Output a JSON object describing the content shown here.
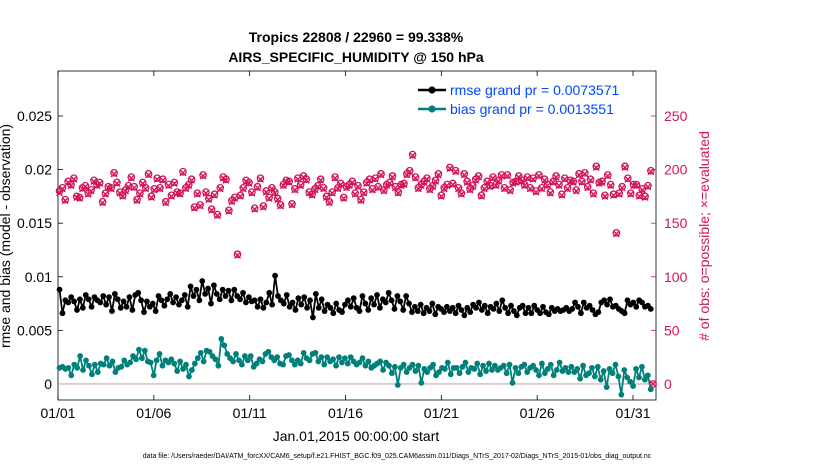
{
  "chart_data": {
    "type": "line",
    "title": "Tropics 22808 / 22960 = 99.338%",
    "subtitle": "AIRS_SPECIFIC_HUMIDITY @ 150 hPa",
    "xlabel": "Jan.01,2015 00:00:00 start",
    "ylabel_left": "rmse and bias (model - observation)",
    "ylabel_right": "# of obs: o=possible; ×=evaluated",
    "footer": "data file: /Users/raeder/DAI/ATM_forcXX/CAM6_setup/f.e21.FHIST_BGC.f09_025.CAM6assim.011/Diags_NTrS_2017-02/Diags_NTrS_2015-01/obs_diag_output.nc",
    "x_ticks": [
      "01/01",
      "01/06",
      "01/11",
      "01/16",
      "01/21",
      "01/26",
      "01/31"
    ],
    "x_tick_days": [
      0,
      5,
      10,
      15,
      20,
      25,
      30
    ],
    "xlim": [
      0,
      31.2
    ],
    "ylim_left": [
      -0.0015,
      0.0292
    ],
    "y_ticks_left": [
      "0",
      "0.005",
      "0.01",
      "0.015",
      "0.02",
      "0.025"
    ],
    "y_tick_values_left": [
      0,
      0.005,
      0.01,
      0.015,
      0.02,
      0.025
    ],
    "ylim_right": [
      -15,
      292
    ],
    "y_ticks_right": [
      "0",
      "50",
      "100",
      "150",
      "200",
      "250"
    ],
    "y_tick_values_right": [
      0,
      50,
      100,
      150,
      200,
      250
    ],
    "legend": [
      {
        "name": "rmse grand pr = 0.0073571",
        "color": "#000000"
      },
      {
        "name": "bias grand pr = 0.0013551",
        "color": "#00807a"
      }
    ],
    "series": [
      {
        "name": "rmse",
        "axis": "left",
        "color": "#000000",
        "values": [
          0.0088,
          0.0066,
          0.0078,
          0.0076,
          0.0081,
          0.0077,
          0.0069,
          0.0079,
          0.0071,
          0.0083,
          0.0079,
          0.0072,
          0.0081,
          0.0078,
          0.0076,
          0.0082,
          0.0074,
          0.0081,
          0.0068,
          0.0084,
          0.0079,
          0.0071,
          0.0077,
          0.0072,
          0.0081,
          0.0069,
          0.0083,
          0.0085,
          0.0078,
          0.0067,
          0.0077,
          0.0072,
          0.0075,
          0.0068,
          0.0082,
          0.0078,
          0.0073,
          0.0079,
          0.0084,
          0.0076,
          0.0081,
          0.0074,
          0.0078,
          0.0083,
          0.0072,
          0.0091,
          0.0082,
          0.0088,
          0.0078,
          0.0096,
          0.0084,
          0.0089,
          0.0075,
          0.0092,
          0.0084,
          0.0079,
          0.0088,
          0.0082,
          0.0087,
          0.0078,
          0.0088,
          0.0082,
          0.0079,
          0.0085,
          0.0076,
          0.0081,
          0.0077,
          0.0078,
          0.0072,
          0.0079,
          0.0071,
          0.0076,
          0.0085,
          0.0074,
          0.0101,
          0.0082,
          0.0078,
          0.0075,
          0.0083,
          0.0072,
          0.0076,
          0.0069,
          0.008,
          0.0074,
          0.0081,
          0.0071,
          0.0078,
          0.0062,
          0.0084,
          0.0071,
          0.0079,
          0.0068,
          0.0074,
          0.0071,
          0.0066,
          0.0075,
          0.0069,
          0.0067,
          0.0074,
          0.0078,
          0.0072,
          0.008,
          0.0071,
          0.0068,
          0.0082,
          0.0075,
          0.0069,
          0.008,
          0.0074,
          0.0083,
          0.0071,
          0.0079,
          0.0076,
          0.0085,
          0.0078,
          0.007,
          0.0082,
          0.0077,
          0.0069,
          0.0082,
          0.0075,
          0.0067,
          0.0072,
          0.0068,
          0.0074,
          0.0066,
          0.0071,
          0.0068,
          0.0075,
          0.0065,
          0.0072,
          0.007,
          0.0067,
          0.0072,
          0.0068,
          0.0071,
          0.0066,
          0.0073,
          0.0069,
          0.0064,
          0.0071,
          0.0067,
          0.0074,
          0.0071,
          0.0076,
          0.0069,
          0.0073,
          0.0066,
          0.0072,
          0.007,
          0.0075,
          0.0068,
          0.0078,
          0.0071,
          0.0066,
          0.0073,
          0.0068,
          0.0064,
          0.0071,
          0.0073,
          0.0066,
          0.0071,
          0.0066,
          0.0073,
          0.0069,
          0.0066,
          0.0072,
          0.0067,
          0.0065,
          0.0071,
          0.0068,
          0.007,
          0.0068,
          0.0069,
          0.0071,
          0.0068,
          0.007,
          0.0076,
          0.0072,
          0.0066,
          0.0076,
          0.0071,
          0.0073,
          0.0069,
          0.0065,
          0.0067,
          0.0076,
          0.0078,
          0.0074,
          0.0079,
          0.0072,
          0.0073,
          0.007,
          0.0068,
          0.0066,
          0.0078,
          0.0074,
          0.0076,
          0.0072,
          0.0078,
          0.0076,
          0.0072,
          0.0073,
          0.007
        ]
      },
      {
        "name": "bias",
        "axis": "left",
        "color": "#00807a",
        "values": [
          0.0015,
          0.0016,
          0.0014,
          0.0015,
          0.0008,
          0.0018,
          0.0015,
          0.0026,
          0.0013,
          0.0022,
          0.0017,
          0.0009,
          0.0018,
          0.0011,
          0.0019,
          0.0018,
          0.0024,
          0.0017,
          0.0021,
          0.0011,
          0.0015,
          0.0016,
          0.0022,
          0.0018,
          0.002,
          0.0026,
          0.0023,
          0.0032,
          0.0024,
          0.0031,
          0.0021,
          0.002,
          0.0008,
          0.0022,
          0.0028,
          0.0017,
          0.0022,
          0.002,
          0.0023,
          0.0019,
          0.0012,
          0.0021,
          0.0014,
          0.0018,
          0.0007,
          0.0013,
          0.0019,
          0.0024,
          0.0029,
          0.0021,
          0.0031,
          0.003,
          0.0026,
          0.0023,
          0.0017,
          0.0042,
          0.0036,
          0.0028,
          0.0024,
          0.0021,
          0.0028,
          0.0022,
          0.0018,
          0.0026,
          0.0022,
          0.0026,
          0.0016,
          0.0019,
          0.0023,
          0.0021,
          0.0028,
          0.003,
          0.0025,
          0.0022,
          0.0025,
          0.0019,
          0.0018,
          0.0026,
          0.0027,
          0.0022,
          0.0018,
          0.0022,
          0.0019,
          0.0029,
          0.0024,
          0.0022,
          0.0028,
          0.0029,
          0.0021,
          0.0025,
          0.0018,
          0.0025,
          0.0021,
          0.0023,
          0.0017,
          0.0025,
          0.002,
          0.0024,
          0.0019,
          0.0025,
          0.0021,
          0.0018,
          0.002,
          0.0024,
          0.0017,
          0.0021,
          0.0015,
          0.0017,
          0.0019,
          0.0021,
          0.0013,
          0.002,
          0.0017,
          0.001,
          0.0016,
          -0.0001,
          0.0015,
          0.0018,
          0.0011,
          0.0015,
          0.0018,
          0.0012,
          0.0017,
          0.0001,
          0.0014,
          0.0011,
          0.0015,
          0.0018,
          0.0008,
          0.0011,
          0.0015,
          0.0014,
          0.002,
          0.0009,
          0.0015,
          0.0015,
          0.001,
          0.0016,
          0.002,
          0.0011,
          0.0015,
          0.0014,
          0.0019,
          0.0009,
          0.0017,
          0.0012,
          0.0019,
          0.0013,
          0.0017,
          0.0013,
          0.0015,
          0.0017,
          0.001,
          0.0018,
          0.0001,
          0.0015,
          0.001,
          0.0016,
          0.0018,
          0.0011,
          0.0015,
          0.0017,
          0.0013,
          0.0008,
          0.0019,
          0.001,
          0.0014,
          0.0018,
          0.0008,
          0.0013,
          0.002,
          0.0012,
          0.0015,
          0.0011,
          0.0016,
          0.0011,
          0.0014,
          0.0005,
          0.0017,
          0.0008,
          0.001,
          0.0015,
          0.0007,
          0.0016,
          0.0004,
          0.0012,
          -0.0003,
          0.0014,
          0.001,
          0.0018,
          0.0007,
          -0.001,
          0.0013,
          0.0006,
          0.0002,
          -0.0002,
          0.0014,
          0.0006,
          0.0016,
          0.0004,
          0.0008,
          -0.0005
        ]
      },
      {
        "name": "# of obs possible",
        "axis": "right",
        "color": "#d4145a",
        "values": [
          180,
          183,
          172,
          189,
          186,
          192,
          175,
          174,
          183,
          185,
          178,
          181,
          190,
          186,
          188,
          170,
          178,
          184,
          183,
          197,
          188,
          179,
          176,
          181,
          185,
          193,
          184,
          172,
          178,
          188,
          183,
          196,
          175,
          182,
          192,
          183,
          191,
          170,
          186,
          176,
          188,
          179,
          178,
          198,
          183,
          186,
          191,
          165,
          178,
          167,
          195,
          179,
          173,
          163,
          177,
          158,
          183,
          193,
          191,
          162,
          171,
          174,
          121,
          176,
          183,
          190,
          188,
          179,
          164,
          184,
          192,
          166,
          180,
          174,
          183,
          179,
          173,
          167,
          186,
          190,
          189,
          168,
          182,
          192,
          186,
          194,
          191,
          179,
          177,
          182,
          185,
          191,
          183,
          175,
          170,
          179,
          193,
          183,
          187,
          174,
          184,
          186,
          189,
          178,
          185,
          172,
          179,
          188,
          191,
          182,
          192,
          184,
          196,
          181,
          186,
          188,
          194,
          184,
          179,
          186,
          187,
          196,
          199,
          214,
          193,
          183,
          186,
          189,
          192,
          182,
          185,
          190,
          196,
          176,
          183,
          186,
          202,
          187,
          199,
          183,
          178,
          196,
          189,
          182,
          185,
          191,
          194,
          176,
          183,
          189,
          185,
          193,
          186,
          190,
          195,
          183,
          195,
          181,
          188,
          189,
          194,
          190,
          186,
          193,
          183,
          192,
          180,
          195,
          183,
          191,
          186,
          179,
          189,
          194,
          186,
          177,
          192,
          183,
          190,
          189,
          181,
          196,
          189,
          197,
          184,
          191,
          178,
          203,
          188,
          189,
          176,
          195,
          186,
          177,
          141,
          178,
          184,
          203,
          192,
          178,
          186,
          186,
          176,
          182,
          175,
          185,
          199
        ]
      },
      {
        "name": "# of obs evaluated",
        "axis": "right",
        "color": "#d4145a",
        "values": [
          178,
          182,
          171,
          188,
          185,
          191,
          174,
          173,
          182,
          184,
          177,
          180,
          189,
          185,
          187,
          169,
          177,
          183,
          182,
          196,
          187,
          178,
          175,
          180,
          184,
          192,
          183,
          171,
          177,
          187,
          182,
          195,
          174,
          181,
          191,
          182,
          190,
          169,
          185,
          175,
          187,
          178,
          177,
          197,
          182,
          185,
          190,
          164,
          177,
          166,
          194,
          178,
          172,
          162,
          176,
          157,
          182,
          192,
          190,
          161,
          170,
          173,
          120,
          175,
          182,
          189,
          187,
          178,
          163,
          183,
          191,
          165,
          179,
          173,
          182,
          178,
          172,
          166,
          185,
          189,
          188,
          167,
          181,
          191,
          185,
          193,
          190,
          178,
          176,
          181,
          184,
          190,
          182,
          174,
          169,
          178,
          192,
          182,
          186,
          173,
          183,
          185,
          188,
          177,
          184,
          171,
          178,
          187,
          190,
          181,
          191,
          183,
          195,
          180,
          185,
          187,
          193,
          183,
          178,
          185,
          186,
          195,
          198,
          213,
          192,
          182,
          185,
          188,
          191,
          181,
          184,
          189,
          195,
          175,
          182,
          185,
          201,
          186,
          198,
          182,
          177,
          195,
          188,
          181,
          184,
          190,
          193,
          175,
          182,
          188,
          184,
          192,
          185,
          189,
          194,
          182,
          194,
          180,
          187,
          188,
          193,
          189,
          185,
          192,
          182,
          191,
          179,
          194,
          182,
          190,
          185,
          178,
          188,
          193,
          185,
          176,
          191,
          182,
          189,
          188,
          180,
          195,
          188,
          196,
          183,
          190,
          177,
          202,
          187,
          188,
          175,
          194,
          185,
          176,
          140,
          177,
          183,
          202,
          191,
          177,
          185,
          185,
          175,
          181,
          174,
          184,
          198
        ]
      }
    ]
  }
}
